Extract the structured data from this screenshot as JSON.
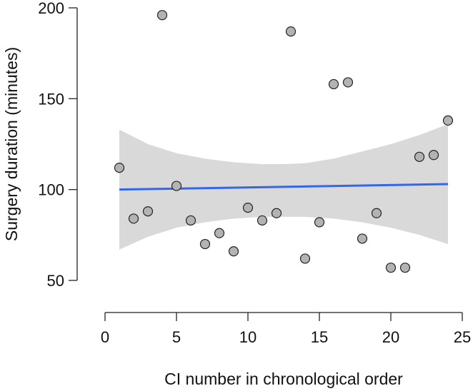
{
  "chart_data": {
    "type": "scatter",
    "xlabel": "CI number in chronological order",
    "ylabel": "Surgery duration (minutes)",
    "xlim": [
      0,
      25
    ],
    "ylim": [
      50,
      200
    ],
    "x_ticks": [
      0,
      5,
      10,
      15,
      20,
      25
    ],
    "y_ticks": [
      50,
      100,
      150,
      200
    ],
    "grid": false,
    "legend": "none",
    "colors": {
      "points_fill": "#b3b3b3",
      "points_stroke": "#222222",
      "fit_line": "#3366ee",
      "confidence_band": "#d9d9d9"
    },
    "points": [
      {
        "x": 1,
        "y": 112
      },
      {
        "x": 2,
        "y": 84
      },
      {
        "x": 3,
        "y": 88
      },
      {
        "x": 4,
        "y": 196
      },
      {
        "x": 5,
        "y": 102
      },
      {
        "x": 6,
        "y": 83
      },
      {
        "x": 7,
        "y": 70
      },
      {
        "x": 8,
        "y": 76
      },
      {
        "x": 9,
        "y": 66
      },
      {
        "x": 10,
        "y": 90
      },
      {
        "x": 11,
        "y": 83
      },
      {
        "x": 12,
        "y": 87
      },
      {
        "x": 13,
        "y": 187
      },
      {
        "x": 14,
        "y": 62
      },
      {
        "x": 15,
        "y": 82
      },
      {
        "x": 16,
        "y": 158
      },
      {
        "x": 17,
        "y": 159
      },
      {
        "x": 18,
        "y": 73
      },
      {
        "x": 19,
        "y": 87
      },
      {
        "x": 20,
        "y": 57
      },
      {
        "x": 21,
        "y": 57
      },
      {
        "x": 22,
        "y": 118
      },
      {
        "x": 23,
        "y": 119
      },
      {
        "x": 24,
        "y": 138
      }
    ],
    "fit": {
      "type": "linear",
      "x": [
        1,
        24
      ],
      "y": [
        100,
        103
      ]
    },
    "confidence_band": {
      "x": [
        1,
        3,
        5,
        7,
        9,
        11,
        12.5,
        14,
        16,
        18,
        20,
        22,
        24
      ],
      "upper": [
        133,
        125,
        120,
        117,
        115,
        114,
        114,
        114.5,
        117,
        121,
        125,
        130,
        136
      ],
      "lower": [
        67,
        74,
        79,
        82,
        84,
        85,
        85,
        85,
        84,
        82,
        79,
        75,
        70
      ]
    }
  }
}
